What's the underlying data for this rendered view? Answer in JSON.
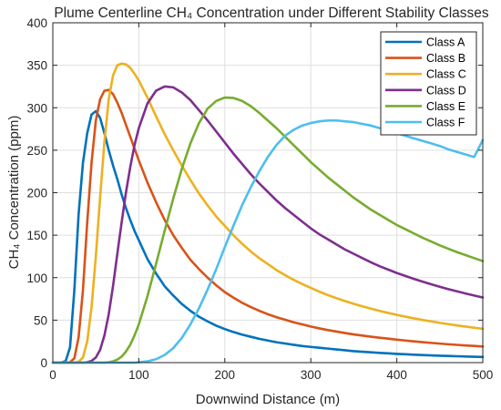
{
  "chart_data": {
    "type": "line",
    "title": "Plume Centerline CH₄ Concentration under Different Stability Classes",
    "xlabel": "Downwind Distance (m)",
    "ylabel": "CH₄ Concentration (ppm)",
    "xlim": [
      0,
      500
    ],
    "ylim": [
      0,
      400
    ],
    "xticks": [
      0,
      100,
      200,
      300,
      400,
      500
    ],
    "yticks": [
      0,
      50,
      100,
      150,
      200,
      250,
      300,
      350,
      400
    ],
    "grid": true,
    "legend_position": "top-right",
    "x": [
      0,
      5,
      10,
      15,
      20,
      25,
      30,
      35,
      40,
      45,
      50,
      55,
      60,
      65,
      70,
      75,
      80,
      85,
      90,
      95,
      100,
      110,
      120,
      130,
      140,
      150,
      160,
      170,
      180,
      190,
      200,
      210,
      220,
      230,
      240,
      250,
      260,
      270,
      280,
      290,
      300,
      310,
      320,
      330,
      340,
      350,
      360,
      370,
      380,
      390,
      400,
      410,
      420,
      430,
      440,
      450,
      460,
      470,
      480,
      490,
      500
    ],
    "series": [
      {
        "name": "Class A",
        "color": "#0072BD",
        "values": [
          0,
          0,
          0.1,
          2,
          18,
          85,
          175,
          235,
          270,
          292,
          296,
          288,
          270,
          250,
          232,
          216,
          198,
          182,
          168,
          155,
          144,
          122,
          105,
          90,
          79,
          69,
          61,
          54,
          48.5,
          43.5,
          39.5,
          36,
          33,
          30.5,
          28,
          26,
          24,
          22.5,
          21,
          19.5,
          18.5,
          17.5,
          16.5,
          15.5,
          14.5,
          13.5,
          12.8,
          12.1,
          11.5,
          10.9,
          10.3,
          9.8,
          9.3,
          8.9,
          8.5,
          8.1,
          7.8,
          7.5,
          7.2,
          6.9,
          6.6
        ]
      },
      {
        "name": "Class B",
        "color": "#D95319",
        "values": [
          0,
          0,
          0,
          0,
          0.5,
          5,
          30,
          85,
          165,
          235,
          285,
          310,
          320,
          321,
          316,
          306,
          294,
          280,
          266,
          252,
          238,
          212,
          189,
          168,
          150,
          135,
          121,
          110,
          100,
          91,
          83,
          76.5,
          70.5,
          65.5,
          61,
          57,
          53.5,
          50.5,
          47.5,
          45,
          42.5,
          40.3,
          38.3,
          36.5,
          34.8,
          33.2,
          31.8,
          30.5,
          29.3,
          28.2,
          27,
          26,
          25,
          24.1,
          23.2,
          22.4,
          21.6,
          20.9,
          20.2,
          19.6,
          19
        ]
      },
      {
        "name": "Class C",
        "color": "#EDB120",
        "values": [
          0,
          0,
          0,
          0,
          0,
          0,
          1,
          6,
          25,
          65,
          125,
          195,
          260,
          310,
          338,
          350,
          352,
          351,
          347,
          340,
          332,
          312,
          290,
          269,
          250,
          232,
          215,
          199,
          185,
          172,
          161,
          150,
          140,
          131,
          123,
          116,
          109,
          103,
          97.5,
          92.5,
          88,
          83.5,
          79.5,
          75.8,
          72.4,
          69.2,
          66.2,
          63.5,
          60.9,
          58.5,
          56.2,
          54.1,
          52.1,
          50.2,
          48.5,
          46.8,
          45.3,
          43.8,
          42.4,
          41.1,
          39.8
        ]
      },
      {
        "name": "Class D",
        "color": "#7E2F8E",
        "values": [
          0,
          0,
          0,
          0,
          0,
          0,
          0,
          0,
          0.5,
          2,
          6,
          15,
          32,
          57,
          90,
          128,
          165,
          200,
          230,
          256,
          276,
          305,
          320,
          325,
          324,
          318,
          309,
          297,
          285,
          272,
          259,
          246,
          234,
          222,
          211,
          201,
          191,
          182,
          174,
          166,
          158,
          151,
          145,
          139,
          133,
          128,
          123,
          118,
          113.5,
          109.5,
          105.5,
          102,
          98.5,
          95.3,
          92.2,
          89.3,
          86.5,
          83.9,
          81.4,
          79,
          76.7
        ]
      },
      {
        "name": "Class E",
        "color": "#77AC30",
        "values": [
          0,
          0,
          0,
          0,
          0,
          0,
          0,
          0,
          0,
          0,
          0,
          0,
          0,
          0.5,
          1.5,
          3.5,
          7,
          13,
          21,
          32,
          45,
          78,
          116,
          155,
          193,
          228,
          258,
          282,
          299,
          308,
          312,
          311.5,
          308,
          302,
          294,
          285,
          276,
          266,
          256,
          246,
          236,
          227,
          218,
          210,
          202,
          194,
          187,
          180,
          174,
          168,
          162,
          157,
          152,
          147,
          142.5,
          138,
          134,
          130,
          126.5,
          123,
          119.5
        ]
      },
      {
        "name": "Class F",
        "color": "#4DBEEE",
        "values": [
          0,
          0,
          0,
          0,
          0,
          0,
          0,
          0,
          0,
          0,
          0,
          0,
          0,
          0,
          0,
          0,
          0,
          0,
          0,
          0,
          0.5,
          1.5,
          4,
          9,
          17,
          29,
          45,
          64,
          86,
          110,
          136,
          161,
          185,
          206,
          225,
          242,
          256,
          267,
          274,
          279,
          282,
          284,
          285,
          285,
          284,
          283,
          281,
          279,
          276,
          273,
          270,
          267,
          264,
          261,
          258,
          255,
          251,
          248,
          245,
          242,
          262
        ]
      }
    ]
  }
}
